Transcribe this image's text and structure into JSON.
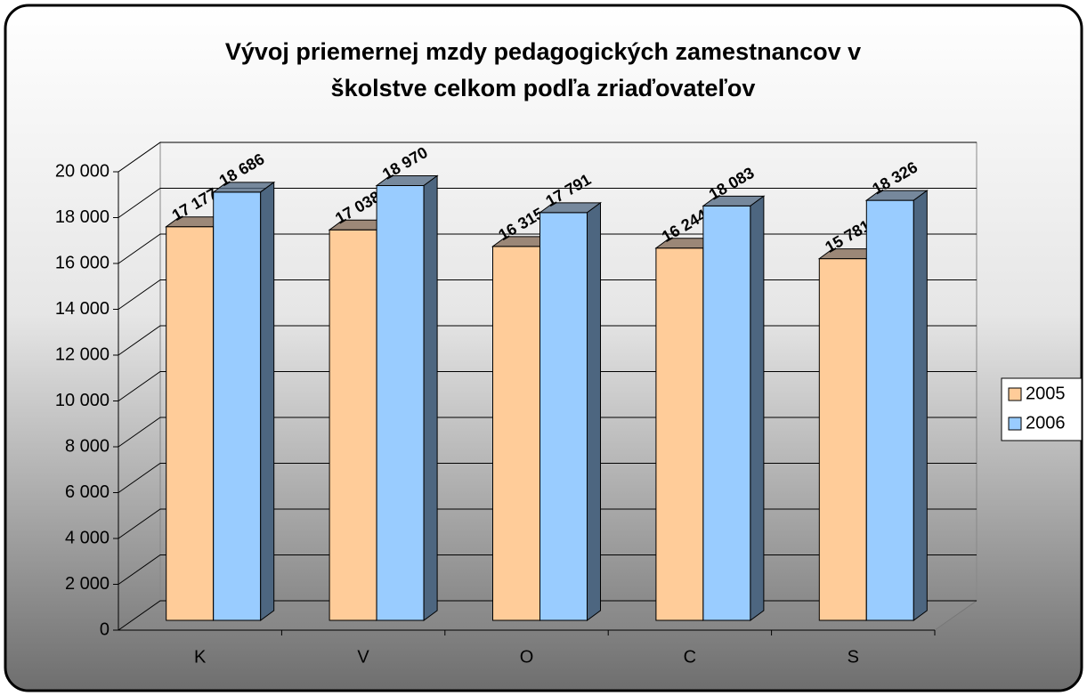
{
  "chart_data": {
    "type": "bar3d",
    "title": [
      "Vývoj priemernej mzdy pedagogických zamestnancov v",
      "školstve celkom podľa zriaďovateľov"
    ],
    "categories": [
      "K",
      "V",
      "O",
      "C",
      "S"
    ],
    "series": [
      {
        "name": "2005",
        "color": "#FFCC99",
        "side": "#806650",
        "values": [
          17177,
          17038,
          16315,
          16244,
          15781
        ],
        "value_labels": [
          "17 177",
          "17 038",
          "16 315",
          "16 244",
          "15 781"
        ]
      },
      {
        "name": "2006",
        "color": "#99CCFF",
        "side": "#4D6680",
        "values": [
          18686,
          18970,
          17791,
          18083,
          18326
        ],
        "value_labels": [
          "18 686",
          "18 970",
          "17 791",
          "18 083",
          "18 326"
        ]
      }
    ],
    "ylim": [
      0,
      20000
    ],
    "yticks": [
      0,
      {
        "value": 2000,
        "label": "2 000"
      },
      {
        "value": 4000,
        "label": "4 000"
      },
      {
        "value": 6000,
        "label": "6 000"
      },
      {
        "value": 8000,
        "label": "8 000"
      },
      {
        "value": 10000,
        "label": "10 000"
      },
      {
        "value": 12000,
        "label": "12 000"
      },
      {
        "value": 14000,
        "label": "14 000"
      },
      {
        "value": 16000,
        "label": "16 000"
      },
      {
        "value": 18000,
        "label": "18 000"
      },
      {
        "value": 20000,
        "label": "20 000"
      }
    ],
    "grid": true,
    "legend": "right"
  }
}
